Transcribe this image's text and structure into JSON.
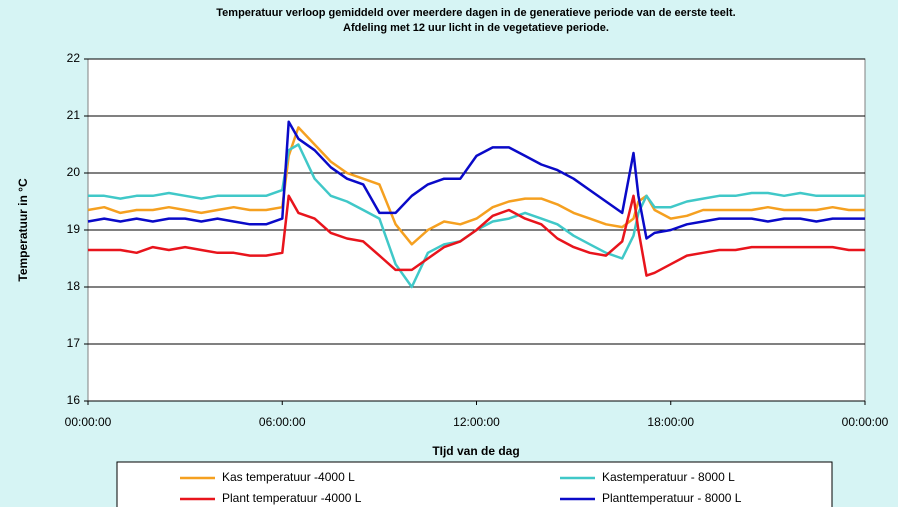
{
  "chart_data": {
    "type": "line",
    "title": [
      "Temperatuur verloop gemiddeld over meerdere dagen in de generatieve periode van de eerste  teelt.",
      "Afdeling met 12 uur licht in de vegetatieve periode."
    ],
    "x_label": "TIjd van de dag",
    "y_label": "Temperatuur in °C",
    "x": [
      0,
      0.5,
      1,
      1.5,
      2,
      2.5,
      3,
      3.5,
      4,
      4.5,
      5,
      5.5,
      6,
      6.2,
      6.5,
      7,
      7.5,
      8,
      8.5,
      9,
      9.5,
      10,
      10.5,
      11,
      11.5,
      12,
      12.5,
      13,
      13.5,
      14,
      14.5,
      15,
      15.5,
      16,
      16.5,
      16.85,
      17,
      17.25,
      17.5,
      18,
      18.5,
      19,
      19.5,
      20,
      20.5,
      21,
      21.5,
      22,
      22.5,
      23,
      23.5,
      24
    ],
    "xlim": [
      0,
      24
    ],
    "xticks": [
      {
        "value": 0,
        "label": "00:00:00"
      },
      {
        "value": 6,
        "label": "06:00:00"
      },
      {
        "value": 12,
        "label": "12:00:00"
      },
      {
        "value": 18,
        "label": "18:00:00"
      },
      {
        "value": 24,
        "label": "00:00:00"
      }
    ],
    "ylim": [
      16,
      22
    ],
    "yticks": [
      16,
      17,
      18,
      19,
      20,
      21,
      22
    ],
    "grid": true,
    "legend": "bottom",
    "series": [
      {
        "name": "Kas temperatuur -4000 L",
        "color": "#f5a020",
        "values": [
          19.35,
          19.4,
          19.3,
          19.35,
          19.35,
          19.4,
          19.35,
          19.3,
          19.35,
          19.4,
          19.35,
          19.35,
          19.4,
          20.3,
          20.8,
          20.5,
          20.2,
          20.0,
          19.9,
          19.8,
          19.1,
          18.75,
          19.0,
          19.15,
          19.1,
          19.2,
          19.4,
          19.5,
          19.55,
          19.55,
          19.45,
          19.3,
          19.2,
          19.1,
          19.05,
          19.2,
          19.5,
          19.6,
          19.35,
          19.2,
          19.25,
          19.35,
          19.35,
          19.35,
          19.35,
          19.4,
          19.35,
          19.35,
          19.35,
          19.4,
          19.35,
          19.35
        ]
      },
      {
        "name": "Kastemperatuur - 8000 L",
        "color": "#40c8c8",
        "values": [
          19.6,
          19.6,
          19.55,
          19.6,
          19.6,
          19.65,
          19.6,
          19.55,
          19.6,
          19.6,
          19.6,
          19.6,
          19.7,
          20.4,
          20.5,
          19.9,
          19.6,
          19.5,
          19.35,
          19.2,
          18.4,
          18.0,
          18.6,
          18.75,
          18.8,
          19.0,
          19.15,
          19.2,
          19.3,
          19.2,
          19.1,
          18.9,
          18.75,
          18.6,
          18.5,
          18.9,
          19.3,
          19.6,
          19.4,
          19.4,
          19.5,
          19.55,
          19.6,
          19.6,
          19.65,
          19.65,
          19.6,
          19.65,
          19.6,
          19.6,
          19.6,
          19.6
        ]
      },
      {
        "name": "Plant temperatuur -4000 L",
        "color": "#e8141c",
        "values": [
          18.65,
          18.65,
          18.65,
          18.6,
          18.7,
          18.65,
          18.7,
          18.65,
          18.6,
          18.6,
          18.55,
          18.55,
          18.6,
          19.6,
          19.3,
          19.2,
          18.95,
          18.85,
          18.8,
          18.55,
          18.3,
          18.3,
          18.5,
          18.7,
          18.8,
          19.0,
          19.25,
          19.35,
          19.2,
          19.1,
          18.85,
          18.7,
          18.6,
          18.55,
          18.8,
          19.6,
          19.0,
          18.2,
          18.25,
          18.4,
          18.55,
          18.6,
          18.65,
          18.65,
          18.7,
          18.7,
          18.7,
          18.7,
          18.7,
          18.7,
          18.65,
          18.65
        ]
      },
      {
        "name": "Planttemperatuur - 8000 L",
        "color": "#0a0ac8",
        "values": [
          19.15,
          19.2,
          19.15,
          19.2,
          19.15,
          19.2,
          19.2,
          19.15,
          19.2,
          19.15,
          19.1,
          19.1,
          19.2,
          20.9,
          20.6,
          20.4,
          20.1,
          19.9,
          19.8,
          19.3,
          19.3,
          19.6,
          19.8,
          19.9,
          19.9,
          20.3,
          20.45,
          20.45,
          20.3,
          20.15,
          20.05,
          19.9,
          19.7,
          19.5,
          19.3,
          20.35,
          19.6,
          18.85,
          18.95,
          19.0,
          19.1,
          19.15,
          19.2,
          19.2,
          19.2,
          19.15,
          19.2,
          19.2,
          19.15,
          19.2,
          19.2,
          19.2
        ]
      }
    ]
  }
}
